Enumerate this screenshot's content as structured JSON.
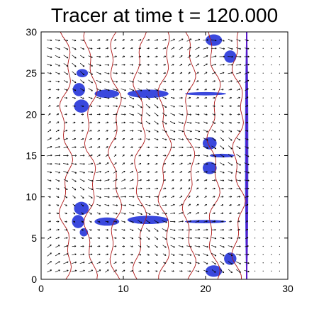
{
  "chart_data": {
    "type": "heatmap",
    "title": "Tracer at time t = 120.000",
    "xlabel": "",
    "ylabel": "",
    "xlim": [
      0,
      30
    ],
    "ylim": [
      0,
      30
    ],
    "x_ticks": [
      0,
      10,
      20,
      30
    ],
    "y_ticks": [
      0,
      5,
      10,
      15,
      20,
      25,
      30
    ],
    "grid": false,
    "colors": {
      "tracer": "#1f2fd8",
      "contour": "#b01818",
      "arrows": "#000000",
      "boundary": "#5a18c8"
    },
    "boundary_x": 25,
    "tracer_blobs": [
      {
        "x": 25.0,
        "y": 15.0,
        "w": 0.4,
        "h": 30.0
      },
      {
        "x": 4.9,
        "y": 21.0,
        "w": 1.8,
        "h": 1.6
      },
      {
        "x": 4.6,
        "y": 23.0,
        "w": 1.5,
        "h": 1.6
      },
      {
        "x": 5.0,
        "y": 25.0,
        "w": 1.4,
        "h": 1.0
      },
      {
        "x": 8.0,
        "y": 22.5,
        "w": 3.0,
        "h": 1.0
      },
      {
        "x": 13.0,
        "y": 22.5,
        "w": 5.0,
        "h": 1.0
      },
      {
        "x": 20.0,
        "y": 22.5,
        "w": 5.0,
        "h": 0.4
      },
      {
        "x": 21.0,
        "y": 29.0,
        "w": 2.0,
        "h": 1.4
      },
      {
        "x": 23.0,
        "y": 27.0,
        "w": 1.5,
        "h": 1.5
      },
      {
        "x": 4.9,
        "y": 8.6,
        "w": 1.8,
        "h": 1.6
      },
      {
        "x": 4.5,
        "y": 7.0,
        "w": 1.5,
        "h": 1.6
      },
      {
        "x": 5.2,
        "y": 5.7,
        "w": 1.0,
        "h": 1.0
      },
      {
        "x": 8.0,
        "y": 7.0,
        "w": 3.0,
        "h": 1.0
      },
      {
        "x": 13.0,
        "y": 7.2,
        "w": 5.0,
        "h": 1.0
      },
      {
        "x": 20.0,
        "y": 7.0,
        "w": 5.0,
        "h": 0.4
      },
      {
        "x": 20.5,
        "y": 16.5,
        "w": 1.7,
        "h": 1.5
      },
      {
        "x": 20.5,
        "y": 13.5,
        "w": 1.7,
        "h": 1.5
      },
      {
        "x": 22.0,
        "y": 15.0,
        "w": 3.0,
        "h": 0.45
      },
      {
        "x": 21.0,
        "y": 1.0,
        "w": 2.0,
        "h": 1.4
      },
      {
        "x": 23.0,
        "y": 2.5,
        "w": 1.5,
        "h": 1.5
      }
    ],
    "contour_xs": [
      3,
      6,
      9,
      12,
      15,
      18,
      21,
      24
    ],
    "arrow_grid": {
      "x_start": 1,
      "x_end": 29,
      "y_start": 1,
      "y_end": 29,
      "step": 1
    }
  }
}
